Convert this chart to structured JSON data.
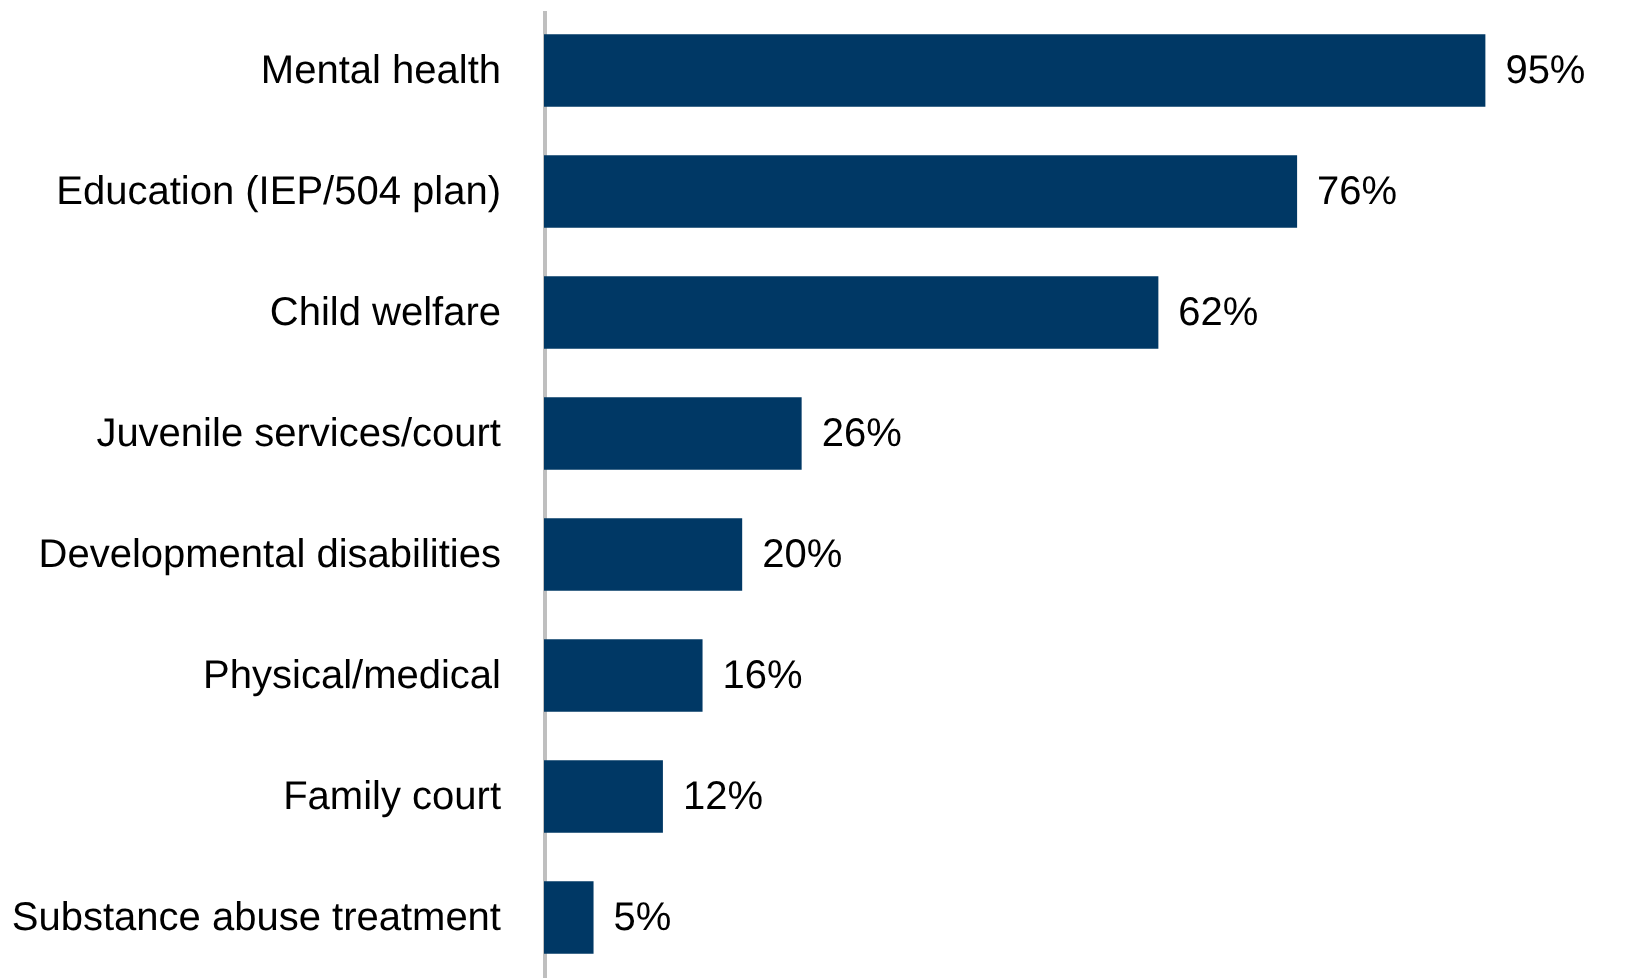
{
  "chart_data": {
    "type": "bar",
    "orientation": "horizontal",
    "categories": [
      "Mental health",
      "Education (IEP/504 plan)",
      "Child welfare",
      "Juvenile services/court",
      "Developmental disabilities",
      "Physical/medical",
      "Family court",
      "Substance abuse treatment"
    ],
    "values": [
      95,
      76,
      62,
      26,
      20,
      16,
      12,
      5
    ],
    "value_labels": [
      "95%",
      "76%",
      "62%",
      "26%",
      "20%",
      "16%",
      "12%",
      "5%"
    ],
    "color": "#003865",
    "tick_labels": "y"
  }
}
